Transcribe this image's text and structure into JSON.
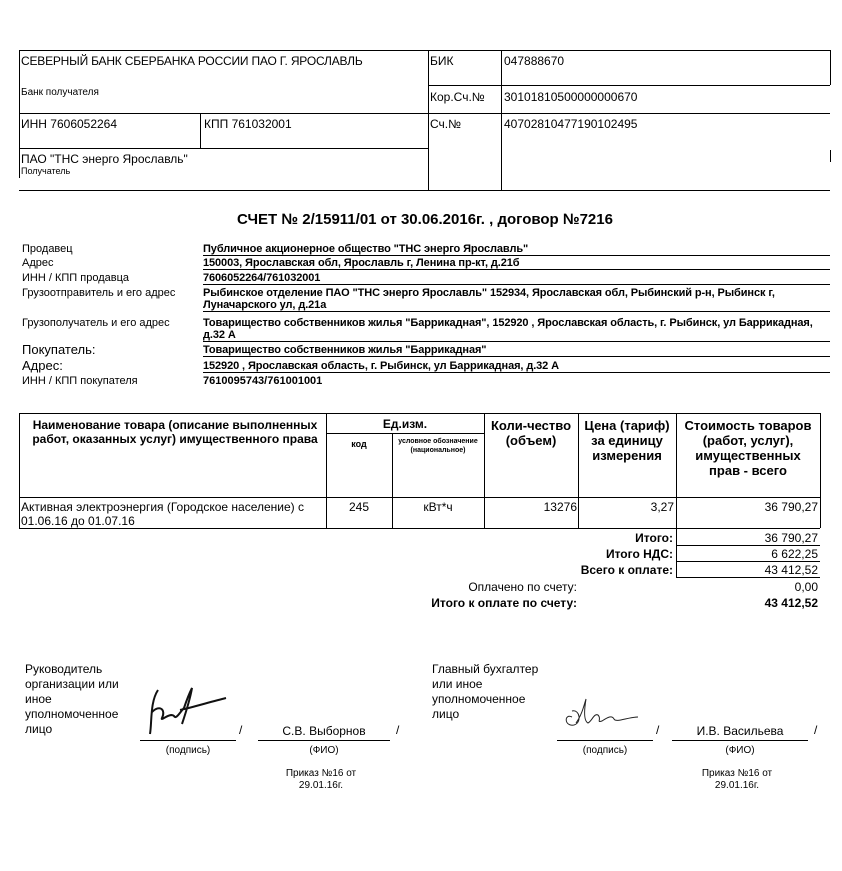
{
  "bank": {
    "bank_name": "СЕВЕРНЫЙ БАНК СБЕРБАНКА РОССИИ ПАО Г. ЯРОСЛАВЛЬ",
    "bank_caption": "Банк получателя",
    "bik_label": "БИК",
    "bik_value": "047888670",
    "kor_label": "Кор.Сч.№",
    "kor_value": "30101810500000000670",
    "inn": "ИНН  7606052264",
    "kpp": "КПП 761032001",
    "sch_label": "Сч.№",
    "sch_value": "40702810477190102495",
    "recipient_name": "ПАО \"ТНС энерго Ярославль\"",
    "recipient_caption": "Получатель"
  },
  "title": "СЧЕТ № 2/15911/01 от 30.06.2016г.  , договор  №7216",
  "info": [
    {
      "label": "Продавец",
      "value": "Публичное акционерное общество \"ТНС энерго Ярославль\""
    },
    {
      "label": "Адрес",
      "value": "150003, Ярославская обл, Ярославль г, Ленина пр-кт,  д.21б"
    },
    {
      "label": "ИНН / КПП продавца",
      "value": "7606052264/761032001"
    },
    {
      "label": "Грузоотправитель и его адрес",
      "value": "Рыбинское отделение ПАО \"ТНС энерго Ярославль\" 152934, Ярославская обл, Рыбинский р-н, Рыбинск г, Луначарского ул,  д.21а"
    },
    {
      "label": "Грузополучатель и его адрес",
      "value": "Товарищество собственников жилья \"Баррикадная\", 152920 , Ярославская область, г. Рыбинск, ул Баррикадная,   д.32 А"
    },
    {
      "label": "Покупатель:",
      "value": "Товарищество собственников жилья \"Баррикадная\""
    },
    {
      "label": "Адрес:",
      "value": "152920 , Ярославская область, г. Рыбинск, ул Баррикадная,   д.32 А"
    },
    {
      "label": "ИНН / КПП покупателя",
      "value": "7610095743/761001001"
    }
  ],
  "table": {
    "headers": {
      "name": "Наименование товара (описание выполненных работ, оказанных услуг) имущественного права",
      "unit": "Ед.изм.",
      "unit_code": "код",
      "unit_symbol": "условное обозначение (национальное)",
      "qty": "Коли-чество (объем)",
      "price": "Цена (тариф) за единицу измерения",
      "total": "Стоимость товаров (работ, услуг), имущественных прав - всего"
    },
    "rows": [
      {
        "name": "Активная электроэнергия (Городское население) с 01.06.16 до  01.07.16",
        "code": "245",
        "symbol": "кВт*ч",
        "qty": "13276",
        "price": "3,27",
        "total": "36 790,27"
      }
    ]
  },
  "totals": {
    "itogo_label": "Итого:",
    "itogo_value": "36 790,27",
    "nds_label": "Итого НДС:",
    "nds_value": "6 622,25",
    "vsego_label": "Всего к оплате:",
    "vsego_value": "43 412,52",
    "paid_label": "Оплачено по счету:",
    "paid_value": "0,00",
    "due_label": "Итого к оплате по счету:",
    "due_value": "43 412,52"
  },
  "signatures": {
    "left": {
      "role": "Руководитель организации или иное уполномоченное лицо",
      "name": "С.В. Выборнов",
      "sign_caption": "(подпись)",
      "fio_caption": "(ФИО)",
      "order": "Приказ №16 от 29.01.16г."
    },
    "right": {
      "role": "Главный бухгалтер или иное уполномоченное лицо",
      "name": "И.В. Васильева",
      "sign_caption": "(подпись)",
      "fio_caption": "(ФИО)",
      "order": "Приказ №16 от 29.01.16г."
    },
    "slash": "/"
  }
}
